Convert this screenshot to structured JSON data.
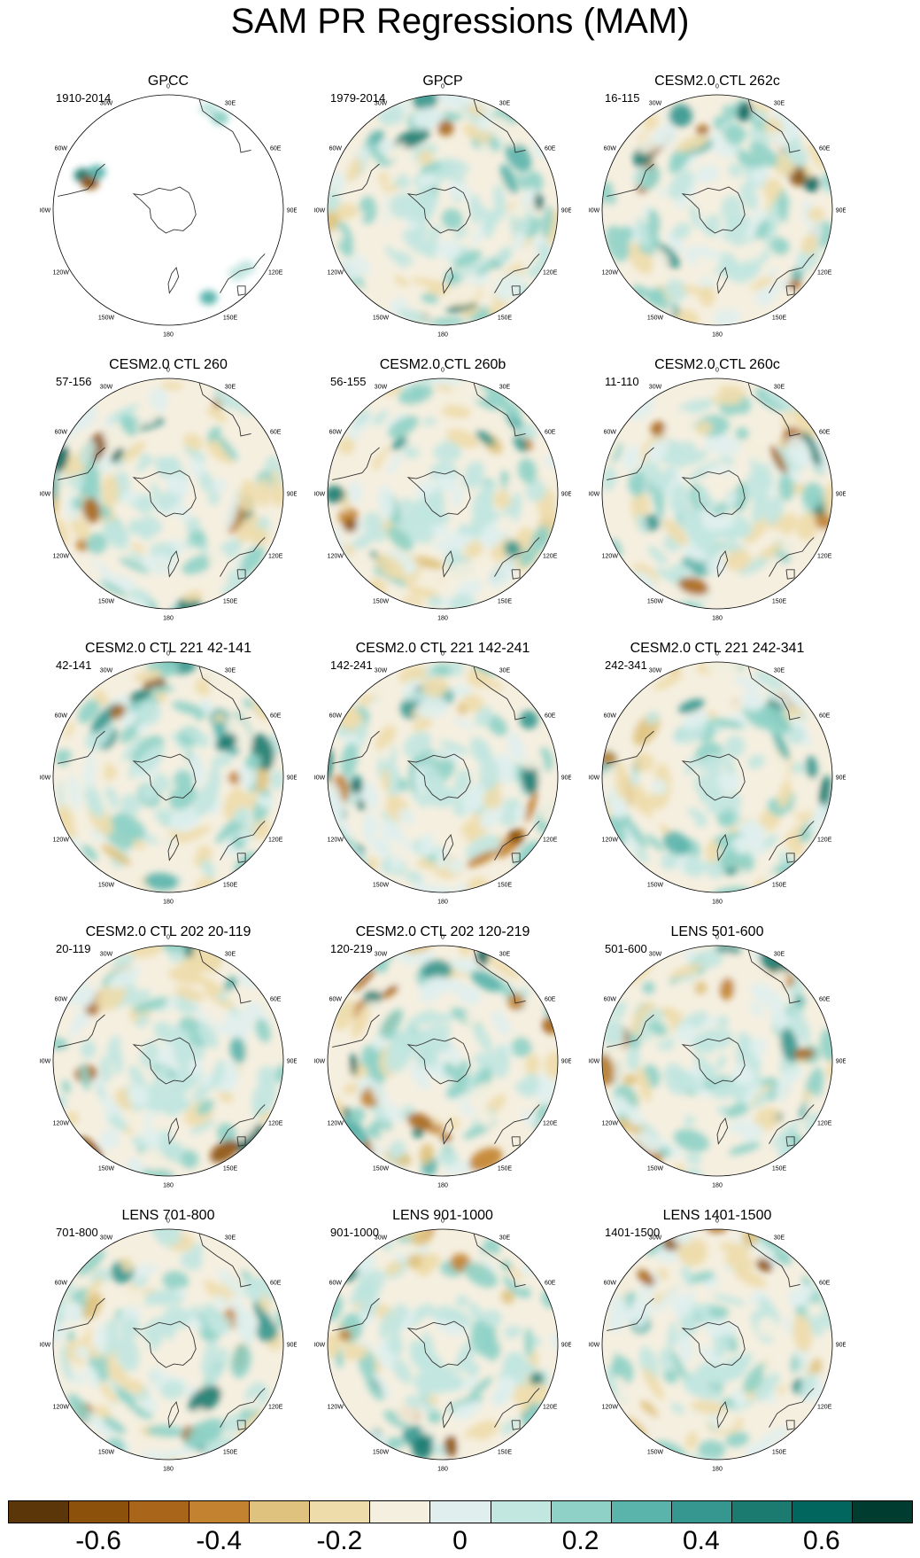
{
  "title": "SAM PR Regressions (MAM)",
  "chart_data": {
    "type": "polar-stereographic contour maps",
    "variable": "precipitation regression onto SAM",
    "season": "MAM",
    "projection": "South polar stereographic",
    "longitude_labels": [
      "0",
      "30E",
      "60E",
      "90E",
      "120E",
      "150E",
      "180",
      "150W",
      "120W",
      "90W",
      "60W",
      "30W"
    ],
    "panels": [
      {
        "title": "GPCC",
        "period": "1910-2014",
        "land_only": true
      },
      {
        "title": "GPCP",
        "period": "1979-2014"
      },
      {
        "title": "CESM2.0 CTL 262c",
        "period": "16-115"
      },
      {
        "title": "CESM2.0 CTL 260",
        "period": "57-156"
      },
      {
        "title": "CESM2.0 CTL 260b",
        "period": "56-155"
      },
      {
        "title": "CESM2.0 CTL 260c",
        "period": "11-110"
      },
      {
        "title": "CESM2.0 CTL 221 42-141",
        "period": "42-141"
      },
      {
        "title": "CESM2.0 CTL 221 142-241",
        "period": "142-241"
      },
      {
        "title": "CESM2.0 CTL 221 242-341",
        "period": "242-341"
      },
      {
        "title": "CESM2.0 CTL 202 20-119",
        "period": "20-119"
      },
      {
        "title": "CESM2.0 CTL 202 120-219",
        "period": "120-219"
      },
      {
        "title": "LENS 501-600",
        "period": "501-600"
      },
      {
        "title": "LENS 701-800",
        "period": "701-800"
      },
      {
        "title": "LENS 901-1000",
        "period": "901-1000"
      },
      {
        "title": "LENS 1401-1500",
        "period": "1401-1500"
      }
    ],
    "colorbar": {
      "levels": [
        -0.7,
        -0.6,
        -0.5,
        -0.4,
        -0.3,
        -0.2,
        -0.1,
        0,
        0.1,
        0.2,
        0.3,
        0.4,
        0.5,
        0.6,
        0.7
      ],
      "tick_labels": [
        "-0.6",
        "-0.4",
        "-0.2",
        "0",
        "0.2",
        "0.4",
        "0.6"
      ],
      "tick_values": [
        -0.6,
        -0.4,
        -0.2,
        0,
        0.2,
        0.4,
        0.6
      ],
      "colors": [
        "#5b3609",
        "#8c510a",
        "#a9661a",
        "#c2822f",
        "#dfc27d",
        "#eedcab",
        "#f5efe0",
        "#e0efee",
        "#c2e6e0",
        "#8fd1c6",
        "#5ab4ac",
        "#35978f",
        "#1b7b70",
        "#01665e",
        "#003c30"
      ]
    }
  }
}
